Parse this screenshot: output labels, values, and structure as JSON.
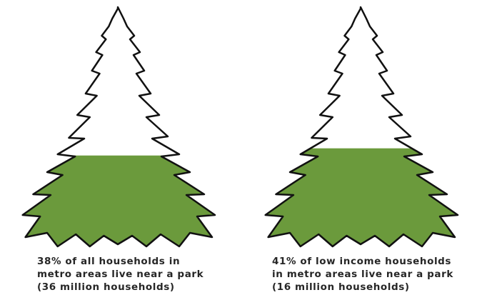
{
  "chart_data": {
    "type": "tree-fill",
    "values": [
      38,
      41
    ],
    "color": "#6b9a3c",
    "captions": [
      [
        "38% of all households in",
        "metro areas live near a park",
        "(36 million households)"
      ],
      [
        "41% of low income households",
        "in metro areas live near a park",
        "(16 million households)"
      ]
    ]
  }
}
